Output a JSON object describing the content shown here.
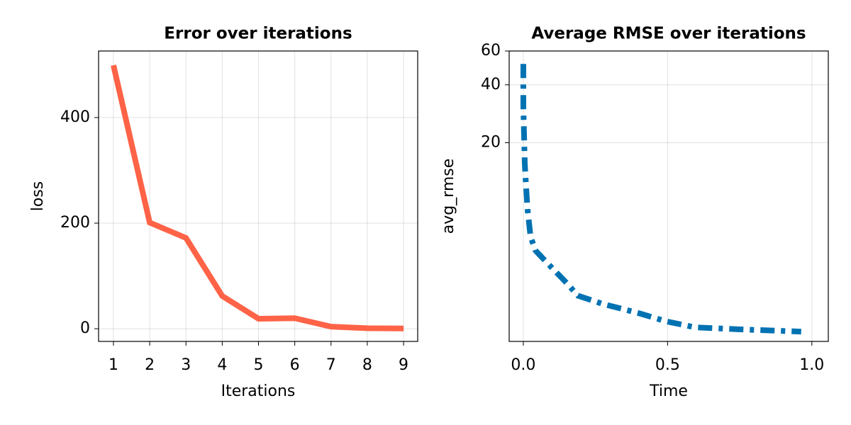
{
  "chart_data": [
    {
      "type": "line",
      "title": "Error over iterations",
      "x_label": "Iterations",
      "y_label": "loss",
      "x": [
        1,
        2,
        3,
        4,
        5,
        6,
        7,
        8,
        9
      ],
      "series": [
        {
          "name": "loss",
          "color": "#ff6347",
          "line_style": "solid",
          "values": [
            499,
            201,
            172,
            62,
            19,
            20,
            4,
            1,
            0.5
          ]
        }
      ],
      "xlim": [
        0.59,
        9.39
      ],
      "xticks": [
        1,
        2,
        3,
        4,
        5,
        6,
        7,
        8,
        9
      ],
      "ylim": [
        -24,
        526
      ],
      "yticks": [
        0,
        200,
        400
      ],
      "yscale": "linear",
      "grid": true
    },
    {
      "type": "line",
      "title": "Average RMSE over iterations",
      "x_label": "Time",
      "y_label": "avg_rmse",
      "x": [
        0,
        0,
        0.005,
        0.01,
        0.015,
        0.025,
        0.042,
        0.091,
        0.152,
        0.189,
        0.275,
        0.398,
        0.496,
        0.595,
        0.743,
        0.889,
        0.963
      ],
      "series": [
        {
          "name": "avg_rmse",
          "color": "#0072b2",
          "line_style": "dashdot",
          "values": [
            51.4,
            31.1,
            15.6,
            11.5,
            8.9,
            6.5,
            5.5,
            4.6,
            3.7,
            3.2,
            2.9,
            2.6,
            2.35,
            2.19,
            2.14,
            2.1,
            2.08
          ]
        }
      ],
      "xlim": [
        -0.049,
        1.057
      ],
      "xticks": [
        {
          "value": 0,
          "label": "0.0"
        },
        0.5,
        {
          "value": 1,
          "label": "1.0"
        }
      ],
      "ylim": [
        1.85,
        60
      ],
      "yticks": [
        20,
        40,
        60
      ],
      "yscale": "log",
      "grid": true
    }
  ]
}
